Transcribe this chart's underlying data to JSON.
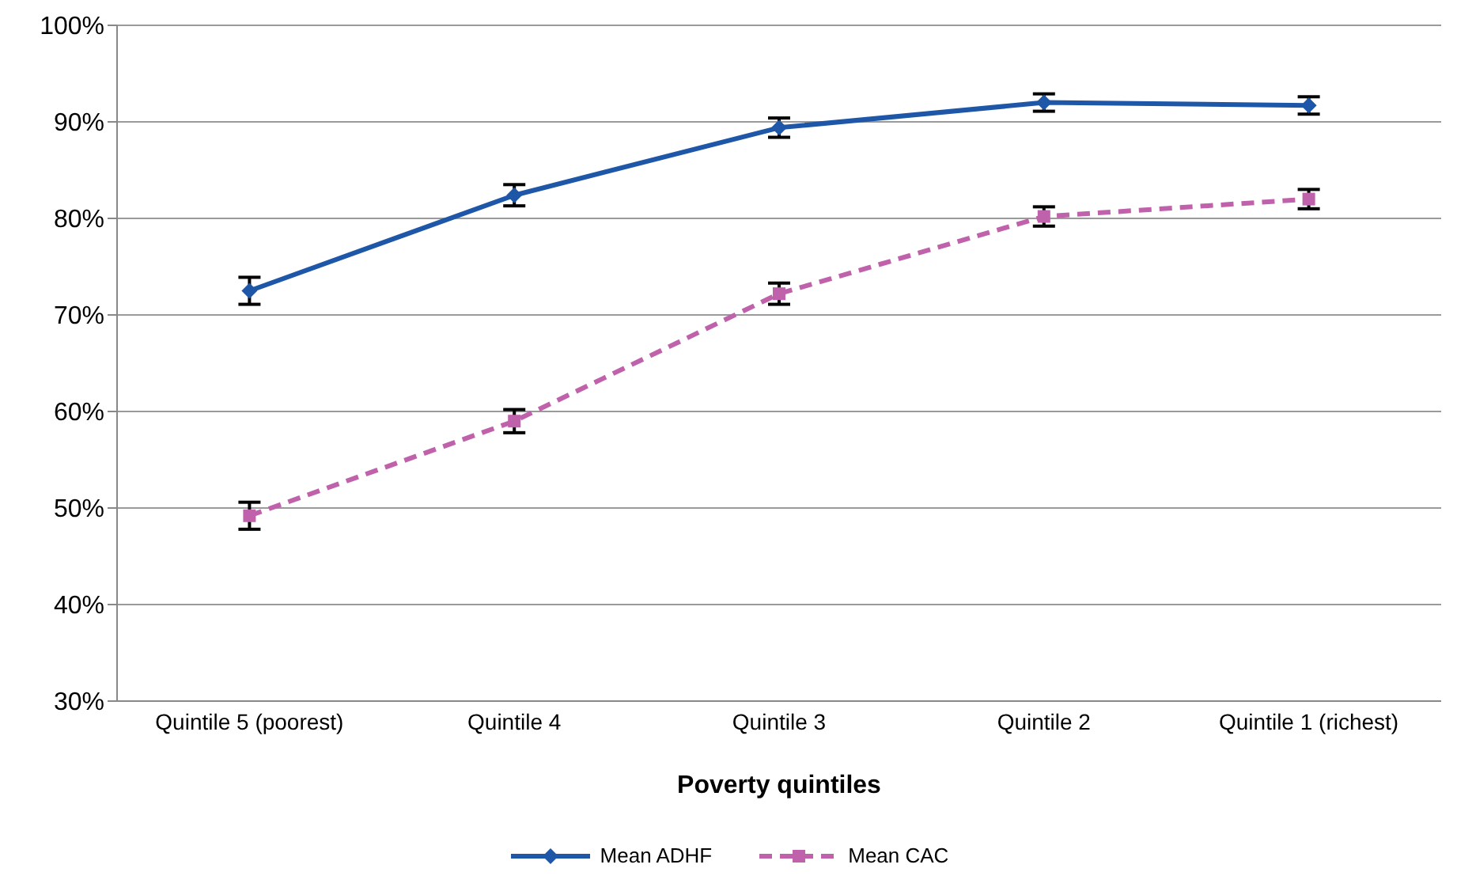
{
  "chart_data": {
    "type": "line",
    "xlabel": "Poverty quintiles",
    "categories": [
      "Quintile 5  (poorest)",
      "Quintile 4",
      "Quintile 3",
      "Quintile 2",
      "Quintile 1    (richest)"
    ],
    "series": [
      {
        "name": "Mean ADHF",
        "color": "#1f57a8",
        "marker": "diamond",
        "line_style": "solid",
        "values": [
          72.5,
          82.4,
          89.4,
          92,
          91.7
        ],
        "errors": [
          1.4,
          1.1,
          1,
          0.9,
          0.9
        ]
      },
      {
        "name": "Mean CAC",
        "color": "#c062ab",
        "marker": "square",
        "line_style": "dashed",
        "values": [
          49.2,
          59,
          72.2,
          80.2,
          82
        ],
        "errors": [
          1.4,
          1.2,
          1.1,
          1,
          1
        ]
      }
    ],
    "ylim": [
      30,
      100
    ],
    "yticks": [
      {
        "value": 30,
        "label": "30%"
      },
      {
        "value": 40,
        "label": "40%"
      },
      {
        "value": 50,
        "label": "50%"
      },
      {
        "value": 60,
        "label": "60%"
      },
      {
        "value": 70,
        "label": "70%"
      },
      {
        "value": 80,
        "label": "80%"
      },
      {
        "value": 90,
        "label": "90%"
      },
      {
        "value": 100,
        "label": "100%"
      }
    ],
    "grid": "y",
    "legend": "bottom"
  }
}
